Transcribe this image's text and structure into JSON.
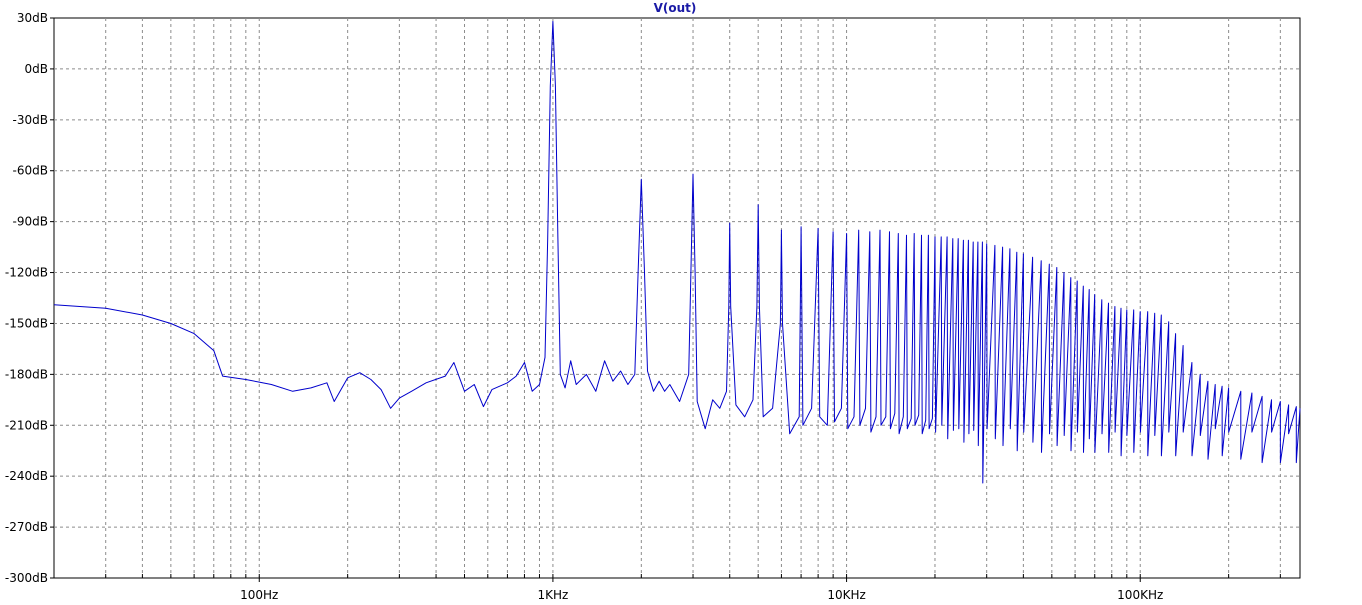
{
  "chart_data": {
    "type": "line",
    "title": "V(out)",
    "xscale": "log",
    "xlim": [
      20,
      350000
    ],
    "ylim": [
      -300,
      30
    ],
    "grid": true,
    "line_color": "#0000cc",
    "x_ticks": [
      {
        "value": 100,
        "label": "100Hz"
      },
      {
        "value": 1000,
        "label": "1KHz"
      },
      {
        "value": 10000,
        "label": "10KHz"
      },
      {
        "value": 100000,
        "label": "100KHz"
      }
    ],
    "y_ticks": [
      {
        "value": 30,
        "label": "30dB"
      },
      {
        "value": 0,
        "label": "0dB"
      },
      {
        "value": -30,
        "label": "-30dB"
      },
      {
        "value": -60,
        "label": "-60dB"
      },
      {
        "value": -90,
        "label": "-90dB"
      },
      {
        "value": -120,
        "label": "-120dB"
      },
      {
        "value": -150,
        "label": "-150dB"
      },
      {
        "value": -180,
        "label": "-180dB"
      },
      {
        "value": -210,
        "label": "-210dB"
      },
      {
        "value": -240,
        "label": "-240dB"
      },
      {
        "value": -270,
        "label": "-270dB"
      },
      {
        "value": -300,
        "label": "-300dB"
      }
    ],
    "series": [
      {
        "values": [
          [
            20,
            -139
          ],
          [
            30,
            -141
          ],
          [
            40,
            -145
          ],
          [
            50,
            -150
          ],
          [
            60,
            -156
          ],
          [
            70,
            -166
          ],
          [
            75,
            -181
          ],
          [
            90,
            -183
          ],
          [
            110,
            -186
          ],
          [
            130,
            -190
          ],
          [
            150,
            -188
          ],
          [
            170,
            -185
          ],
          [
            180,
            -196
          ],
          [
            200,
            -182
          ],
          [
            220,
            -179
          ],
          [
            240,
            -183
          ],
          [
            260,
            -189
          ],
          [
            280,
            -200
          ],
          [
            300,
            -194
          ],
          [
            330,
            -190
          ],
          [
            370,
            -185
          ],
          [
            430,
            -181
          ],
          [
            460,
            -173
          ],
          [
            500,
            -190
          ],
          [
            540,
            -186
          ],
          [
            580,
            -199
          ],
          [
            620,
            -189
          ],
          [
            700,
            -185
          ],
          [
            750,
            -181
          ],
          [
            800,
            -173
          ],
          [
            850,
            -190
          ],
          [
            900,
            -186
          ],
          [
            940,
            -170
          ],
          [
            960,
            -100
          ],
          [
            980,
            -10
          ],
          [
            1000,
            28
          ],
          [
            1020,
            -10
          ],
          [
            1040,
            -100
          ],
          [
            1060,
            -180
          ],
          [
            1100,
            -188
          ],
          [
            1150,
            -172
          ],
          [
            1200,
            -186
          ],
          [
            1300,
            -180
          ],
          [
            1400,
            -190
          ],
          [
            1500,
            -172
          ],
          [
            1600,
            -184
          ],
          [
            1700,
            -178
          ],
          [
            1800,
            -186
          ],
          [
            1900,
            -180
          ],
          [
            1950,
            -120
          ],
          [
            2000,
            -65
          ],
          [
            2050,
            -120
          ],
          [
            2100,
            -178
          ],
          [
            2200,
            -190
          ],
          [
            2300,
            -184
          ],
          [
            2400,
            -190
          ],
          [
            2500,
            -186
          ],
          [
            2700,
            -196
          ],
          [
            2900,
            -180
          ],
          [
            2950,
            -120
          ],
          [
            3000,
            -62
          ],
          [
            3050,
            -120
          ],
          [
            3100,
            -196
          ],
          [
            3300,
            -212
          ],
          [
            3500,
            -195
          ],
          [
            3700,
            -200
          ],
          [
            3900,
            -190
          ],
          [
            3970,
            -140
          ],
          [
            4000,
            -91
          ],
          [
            4030,
            -140
          ],
          [
            4200,
            -198
          ],
          [
            4500,
            -205
          ],
          [
            4800,
            -195
          ],
          [
            4950,
            -140
          ],
          [
            5000,
            -80
          ],
          [
            5050,
            -140
          ],
          [
            5200,
            -205
          ],
          [
            5600,
            -200
          ],
          [
            5950,
            -150
          ],
          [
            6000,
            -95
          ],
          [
            6050,
            -150
          ],
          [
            6400,
            -215
          ],
          [
            6900,
            -205
          ],
          [
            7000,
            -93
          ],
          [
            7100,
            -210
          ],
          [
            7600,
            -200
          ],
          [
            8000,
            -94
          ],
          [
            8100,
            -205
          ],
          [
            8600,
            -210
          ],
          [
            9000,
            -96
          ],
          [
            9100,
            -208
          ],
          [
            9600,
            -200
          ],
          [
            10000,
            -97
          ],
          [
            10100,
            -212
          ],
          [
            10600,
            -205
          ],
          [
            11000,
            -95
          ],
          [
            11100,
            -210
          ],
          [
            11600,
            -200
          ],
          [
            12000,
            -96
          ],
          [
            12100,
            -214
          ],
          [
            12600,
            -205
          ],
          [
            13000,
            -95
          ],
          [
            13100,
            -210
          ],
          [
            13600,
            -205
          ],
          [
            14000,
            -96
          ],
          [
            14100,
            -212
          ],
          [
            14600,
            -203
          ],
          [
            15000,
            -97
          ],
          [
            15100,
            -215
          ],
          [
            15600,
            -205
          ],
          [
            16000,
            -98
          ],
          [
            16100,
            -212
          ],
          [
            16600,
            -206
          ],
          [
            17000,
            -97
          ],
          [
            17100,
            -210
          ],
          [
            17600,
            -204
          ],
          [
            18000,
            -98
          ],
          [
            18100,
            -215
          ],
          [
            18600,
            -207
          ],
          [
            19000,
            -98
          ],
          [
            19100,
            -212
          ],
          [
            19600,
            -206
          ],
          [
            20000,
            -99
          ],
          [
            20100,
            -214
          ],
          [
            21000,
            -99
          ],
          [
            21100,
            -210
          ],
          [
            22000,
            -99
          ],
          [
            22100,
            -218
          ],
          [
            23000,
            -100
          ],
          [
            23100,
            -213
          ],
          [
            24000,
            -100
          ],
          [
            24100,
            -212
          ],
          [
            25000,
            -101
          ],
          [
            25100,
            -220
          ],
          [
            26000,
            -101
          ],
          [
            26100,
            -215
          ],
          [
            27000,
            -102
          ],
          [
            27100,
            -213
          ],
          [
            28000,
            -102
          ],
          [
            28100,
            -222
          ],
          [
            29000,
            -102
          ],
          [
            29100,
            -244
          ],
          [
            30000,
            -103
          ],
          [
            30100,
            -212
          ],
          [
            32000,
            -104
          ],
          [
            32100,
            -218
          ],
          [
            34000,
            -105
          ],
          [
            34100,
            -222
          ],
          [
            36000,
            -106
          ],
          [
            36100,
            -212
          ],
          [
            38000,
            -108
          ],
          [
            38100,
            -225
          ],
          [
            40000,
            -109
          ],
          [
            40100,
            -214
          ],
          [
            43000,
            -111
          ],
          [
            43100,
            -220
          ],
          [
            46000,
            -113
          ],
          [
            46100,
            -226
          ],
          [
            49000,
            -115
          ],
          [
            49100,
            -215
          ],
          [
            52000,
            -117
          ],
          [
            52100,
            -222
          ],
          [
            55000,
            -120
          ],
          [
            55100,
            -216
          ],
          [
            58000,
            -123
          ],
          [
            58100,
            -225
          ],
          [
            61000,
            -125
          ],
          [
            61100,
            -214
          ],
          [
            64000,
            -128
          ],
          [
            64100,
            -226
          ],
          [
            67000,
            -130
          ],
          [
            67100,
            -218
          ],
          [
            70000,
            -133
          ],
          [
            70100,
            -226
          ],
          [
            74000,
            -136
          ],
          [
            74100,
            -215
          ],
          [
            78000,
            -138
          ],
          [
            78100,
            -226
          ],
          [
            82000,
            -140
          ],
          [
            82100,
            -214
          ],
          [
            86000,
            -141
          ],
          [
            86100,
            -228
          ],
          [
            90000,
            -142
          ],
          [
            90100,
            -216
          ],
          [
            95000,
            -142
          ],
          [
            95100,
            -226
          ],
          [
            100000,
            -143
          ],
          [
            100100,
            -214
          ],
          [
            106000,
            -143
          ],
          [
            106100,
            -228
          ],
          [
            112000,
            -144
          ],
          [
            112100,
            -216
          ],
          [
            118000,
            -145
          ],
          [
            118100,
            -228
          ],
          [
            125000,
            -149
          ],
          [
            125100,
            -214
          ],
          [
            132000,
            -156
          ],
          [
            132100,
            -228
          ],
          [
            140000,
            -163
          ],
          [
            140100,
            -214
          ],
          [
            150000,
            -173
          ],
          [
            150100,
            -228
          ],
          [
            160000,
            -180
          ],
          [
            160100,
            -216
          ],
          [
            170000,
            -184
          ],
          [
            170100,
            -230
          ],
          [
            180000,
            -186
          ],
          [
            180100,
            -212
          ],
          [
            190000,
            -187
          ],
          [
            190100,
            -228
          ],
          [
            200000,
            -188
          ],
          [
            200100,
            -214
          ],
          [
            220000,
            -190
          ],
          [
            220100,
            -230
          ],
          [
            240000,
            -191
          ],
          [
            240100,
            -214
          ],
          [
            260000,
            -193
          ],
          [
            260100,
            -232
          ],
          [
            280000,
            -195
          ],
          [
            280100,
            -214
          ],
          [
            300000,
            -196
          ],
          [
            300100,
            -232
          ],
          [
            320000,
            -198
          ],
          [
            320100,
            -215
          ],
          [
            340000,
            -199
          ],
          [
            340100,
            -232
          ],
          [
            350000,
            -200
          ]
        ]
      }
    ]
  }
}
